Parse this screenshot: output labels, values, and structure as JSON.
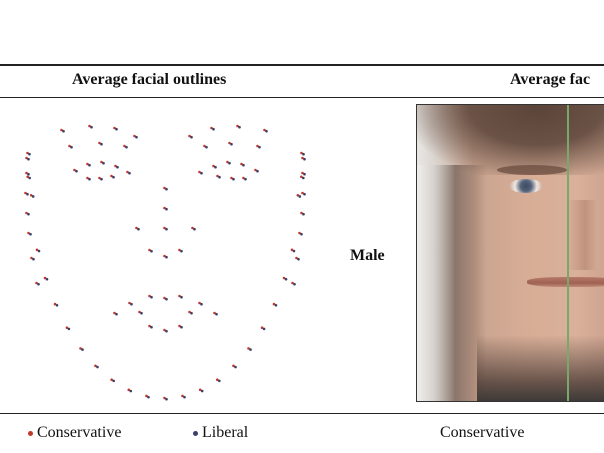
{
  "header": {
    "left_title": "Average facial outlines",
    "right_title": "Average fac"
  },
  "row": {
    "label": "Male"
  },
  "legend": [
    {
      "label": "Conservative",
      "color": "#c0392b"
    },
    {
      "label": "Liberal",
      "color": "#3a3f6b"
    }
  ],
  "bottom": {
    "right_label": "Conservative"
  },
  "colors": {
    "conservative": "#c0392b",
    "liberal": "#3a3f6b",
    "divider": "#7aa86a"
  },
  "chart_data": {
    "type": "scatter",
    "series": [
      {
        "name": "Conservative",
        "color": "#c0392b",
        "points": []
      },
      {
        "name": "Liberal",
        "color": "#3a3f6b",
        "points": []
      }
    ]
  }
}
